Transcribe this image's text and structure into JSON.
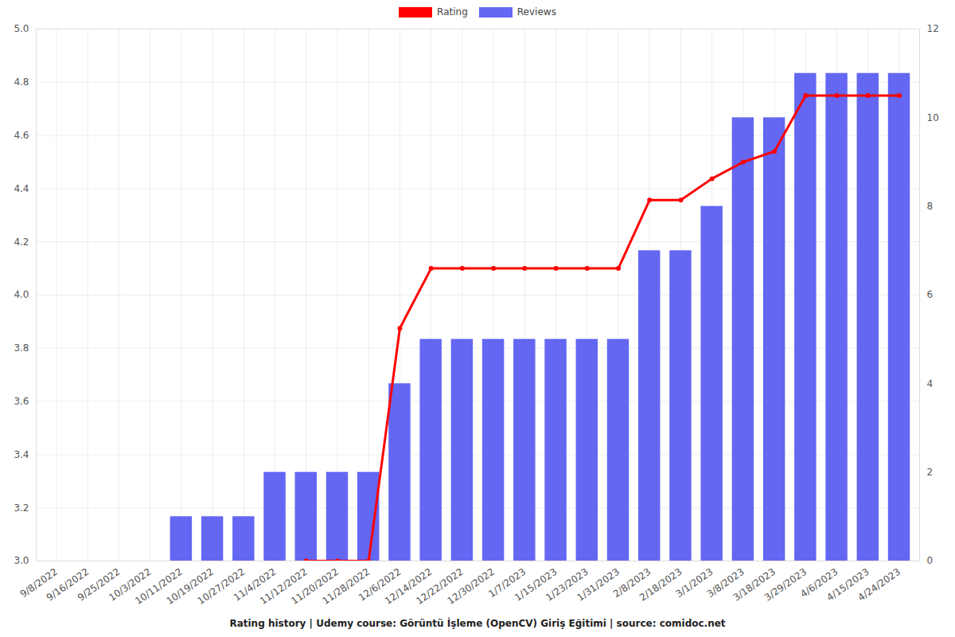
{
  "chart_data": {
    "type": "bar",
    "title": "Rating history | Udemy course: Görüntü İşleme (OpenCV) Giriş Eğitimi | source: comidoc.net",
    "categories": [
      "9/8/2022",
      "9/16/2022",
      "9/25/2022",
      "10/3/2022",
      "10/11/2022",
      "10/19/2022",
      "10/27/2022",
      "11/4/2022",
      "11/12/2022",
      "11/20/2022",
      "11/28/2022",
      "12/6/2022",
      "12/14/2022",
      "12/22/2022",
      "12/30/2022",
      "1/7/2023",
      "1/15/2023",
      "1/23/2023",
      "1/31/2023",
      "2/8/2023",
      "2/18/2023",
      "3/1/2023",
      "3/8/2023",
      "3/18/2023",
      "3/29/2023",
      "4/6/2023",
      "4/15/2023",
      "4/24/2023"
    ],
    "series": [
      {
        "name": "Rating",
        "type": "line",
        "color": "#ff0000",
        "marker": "circle",
        "values": [
          null,
          null,
          null,
          null,
          null,
          null,
          null,
          null,
          3.0,
          3.0,
          3.0,
          3.875,
          4.1,
          4.1,
          4.1,
          4.1,
          4.1,
          4.1,
          4.1,
          4.357,
          4.357,
          4.4375,
          4.5,
          4.54,
          4.75,
          4.75,
          4.75,
          4.75
        ]
      },
      {
        "name": "Reviews",
        "type": "bar",
        "axis": "y2",
        "color": "#6467f2",
        "values": [
          0,
          0,
          0,
          0,
          1,
          1,
          1,
          2,
          2,
          2,
          2,
          4,
          5,
          5,
          5,
          5,
          5,
          5,
          5,
          7,
          7,
          8,
          10,
          10,
          11,
          11,
          11,
          11
        ]
      }
    ],
    "ylim": [
      3.0,
      5.0
    ],
    "yticks": [
      {
        "value": 3.0,
        "label": "3.0"
      },
      {
        "value": 3.2,
        "label": "3.2"
      },
      {
        "value": 3.4,
        "label": "3.4"
      },
      {
        "value": 3.6,
        "label": "3.6"
      },
      {
        "value": 3.8,
        "label": "3.8"
      },
      {
        "value": 4.0,
        "label": "4.0"
      },
      {
        "value": 4.2,
        "label": "4.2"
      },
      {
        "value": 4.4,
        "label": "4.4"
      },
      {
        "value": 4.6,
        "label": "4.6"
      },
      {
        "value": 4.8,
        "label": "4.8"
      },
      {
        "value": 5.0,
        "label": "5.0"
      }
    ],
    "y2lim": [
      0,
      12
    ],
    "y2ticks": [
      0,
      2,
      4,
      6,
      8,
      10,
      12
    ],
    "grid": true,
    "legend": "top"
  }
}
